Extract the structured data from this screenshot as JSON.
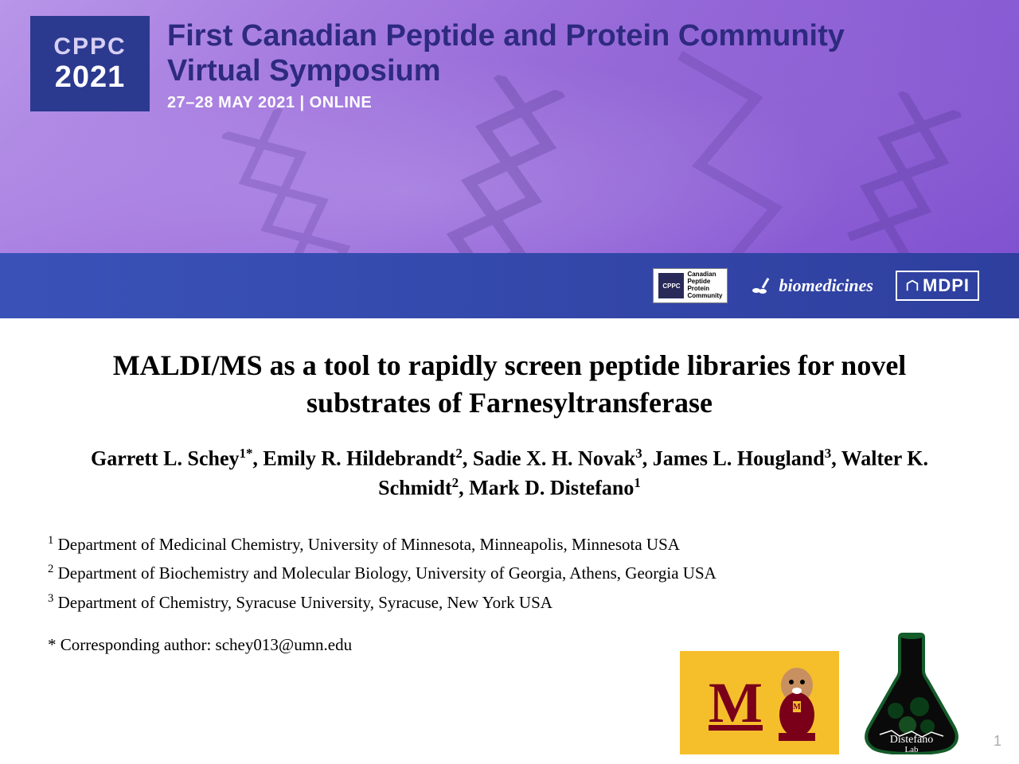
{
  "banner": {
    "logo_line1": "CPPC",
    "logo_line2": "2021",
    "title": "First Canadian Peptide and Protein Community Virtual Symposium",
    "date": "27–28 MAY 2021 | ONLINE",
    "gradient_colors": [
      "#b896e8",
      "#a77de0",
      "#9568d8",
      "#8a5cd4",
      "#7e50cf"
    ],
    "logo_badge_color": "#2b3a8f",
    "title_color": "#2e2a80",
    "sponsor_bar_color": "#2e3f9e"
  },
  "sponsors": {
    "cppc_abbr": "CPPC",
    "cppc_line1": "Canadian",
    "cppc_line2": "Peptide",
    "cppc_line3": "Protein",
    "cppc_line4": "Community",
    "biomedicines": "biomedicines",
    "mdpi": "MDPI"
  },
  "paper": {
    "title": "MALDI/MS as a tool to rapidly screen peptide libraries for novel substrates of Farnesyltransferase",
    "authors_html": "Garrett L. Schey<sup>1*</sup>, Emily R. Hildebrandt<sup>2</sup>, Sadie X. H. Novak<sup>3</sup>, James L. Hougland<sup>3</sup>, Walter K. Schmidt<sup>2</sup>, Mark D. Distefano<sup>1</sup>",
    "affil1": "Department of Medicinal Chemistry, University of Minnesota, Minneapolis, Minnesota USA",
    "affil2": "Department of Biochemistry and Molecular Biology, University of Georgia, Athens, Georgia USA",
    "affil3": "Department of Chemistry, Syracuse University, Syracuse, New York USA",
    "corresponding": "* Corresponding author: schey013@umn.edu",
    "title_fontsize": 36,
    "authors_fontsize": 26,
    "affil_fontsize": 21
  },
  "logos": {
    "umn_letter": "M",
    "umn_bg": "#f5bf2c",
    "umn_maroon": "#7a0019",
    "lab_name": "Distefano",
    "lab_sub": "Lab"
  },
  "page_number": "1"
}
